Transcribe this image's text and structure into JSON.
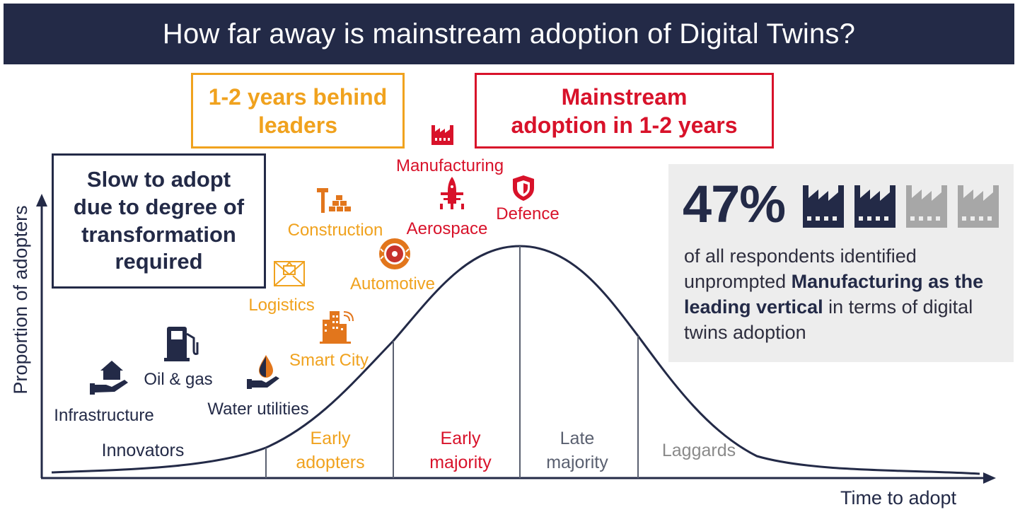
{
  "title": "How far away is mainstream adoption of Digital Twins?",
  "callouts": {
    "behind_leaders": {
      "line1": "1-2 years behind",
      "line2": "leaders",
      "color": "#f0a21e"
    },
    "mainstream": {
      "line1": "Mainstream",
      "line2": "adoption in 1-2 years",
      "color": "#d8122a"
    },
    "slow": {
      "line1": "Slow to adopt",
      "line2": "due to degree of",
      "line3": "transformation",
      "line4": "required",
      "color": "#232a47"
    }
  },
  "axes": {
    "y_label": "Proportion of adopters",
    "x_label": "Time to adopt"
  },
  "segments": {
    "innovators": "Innovators",
    "early_adopters_1": "Early",
    "early_adopters_2": "adopters",
    "early_majority_1": "Early",
    "early_majority_2": "majority",
    "late_majority_1": "Late",
    "late_majority_2": "majority",
    "laggards": "Laggards"
  },
  "industries": {
    "infrastructure": "Infrastructure",
    "oil_gas": "Oil & gas",
    "water": "Water utilities",
    "logistics": "Logistics",
    "smart_city": "Smart City",
    "construction": "Construction",
    "automotive": "Automotive",
    "manufacturing": "Manufacturing",
    "aerospace": "Aerospace",
    "defence": "Defence"
  },
  "stat": {
    "percent": "47%",
    "text_1": "of all respondents identified unprompted",
    "text_bold": "Manufacturing as the leading vertical",
    "text_2": "in terms of digital twins adoption",
    "factories_filled": 2,
    "factories_total": 4
  },
  "colors": {
    "navy": "#232a47",
    "orange": "#f0a21e",
    "orange_dark": "#e2761c",
    "red": "#d8122a",
    "gray": "#8a8a8a",
    "light_gray": "#a7a7a7"
  }
}
